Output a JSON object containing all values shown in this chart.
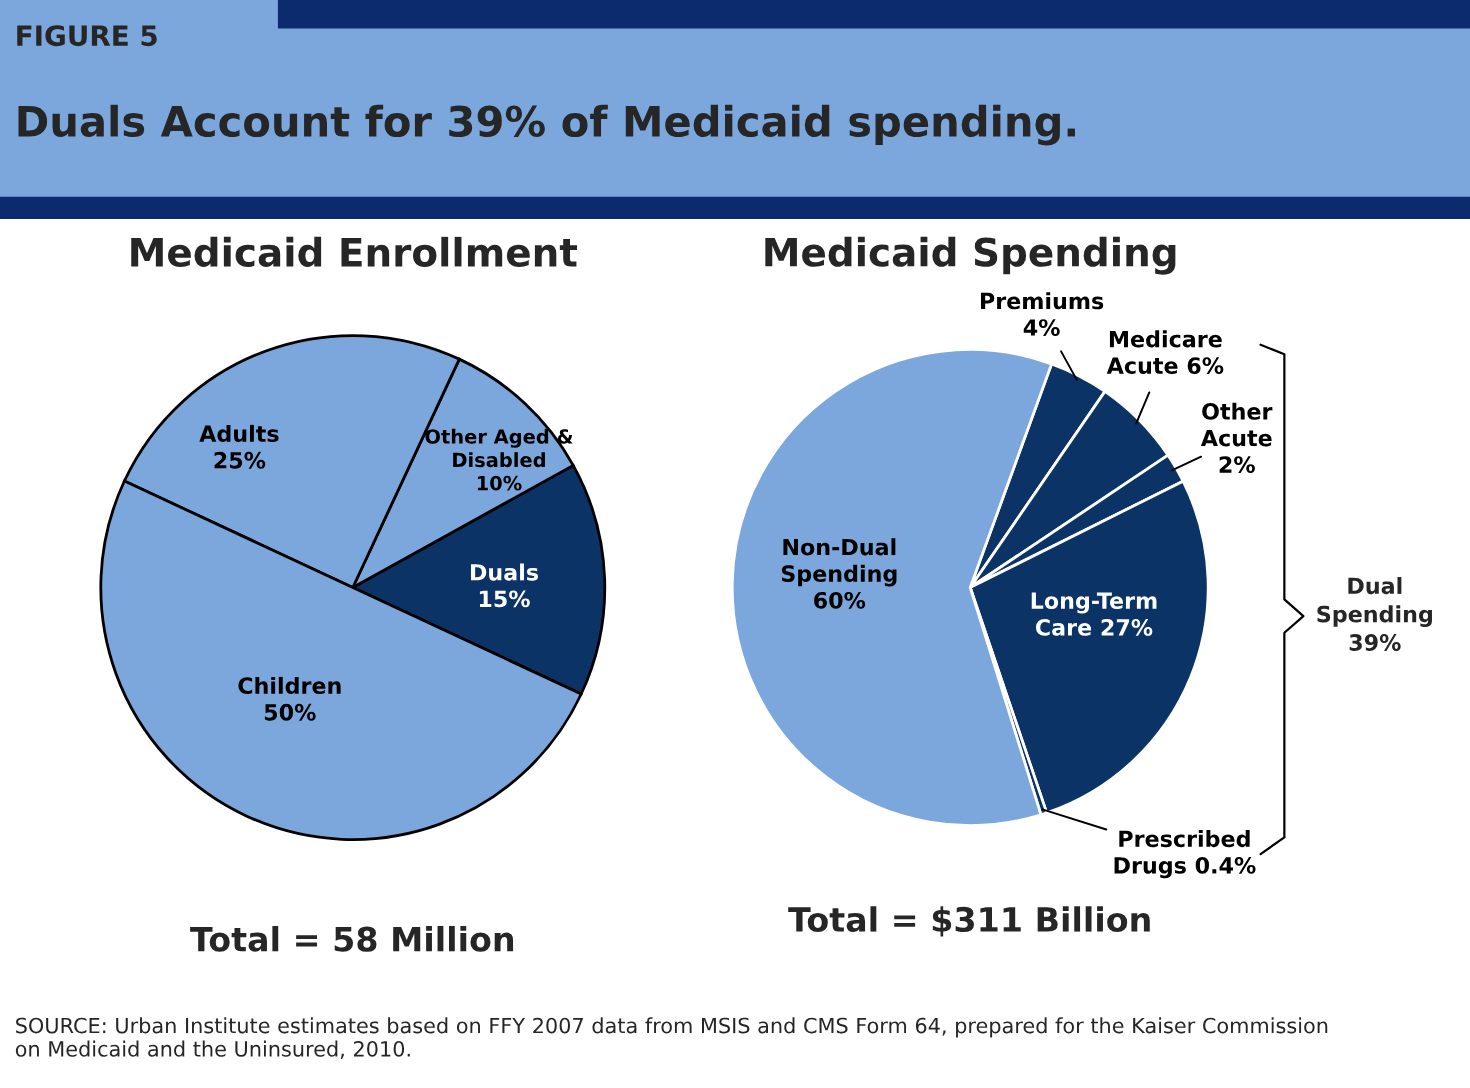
{
  "chart_data": [
    {
      "type": "pie",
      "title": "Medicaid Enrollment",
      "categories": [
        "Duals",
        "Other Aged &\nDisabled",
        "Adults",
        "Children"
      ],
      "values": [
        15,
        10,
        25,
        50
      ],
      "value_labels": [
        "15%",
        "10%",
        "25%",
        "50%"
      ],
      "colors": [
        "#0c3366",
        "#7ba7dc",
        "#7ba7dc",
        "#7ba7dc"
      ],
      "annotations": [
        "FIGURE 5",
        "Duals Account for 39% of Medicaid spending.",
        "Total = 58 Million",
        "SOURCE: Urban Institute estimates based on FFY 2007 data from MSIS and CMS Form 64, prepared for the Kaiser Commission on Medicaid and the Uninsured, 2010."
      ]
    },
    {
      "type": "pie",
      "title": "Medicaid Spending",
      "categories": [
        "Premiums",
        "Medicare\nAcute",
        "Other\nAcute",
        "Long-Term\nCare",
        "Prescribed\nDrugs",
        "Non-Dual\nSpending"
      ],
      "values": [
        4,
        6,
        2,
        27,
        0.4,
        60
      ],
      "value_labels": [
        "4%",
        "6%",
        "2%",
        "27%",
        "0.4%",
        "60%"
      ],
      "colors": [
        "#0c3366",
        "#0c3366",
        "#0c3366",
        "#0c3366",
        "#0c3366",
        "#7ba7dc"
      ],
      "annotations": [
        "Total = $311 Billion",
        "Dual\nSpending\n39%"
      ]
    }
  ]
}
